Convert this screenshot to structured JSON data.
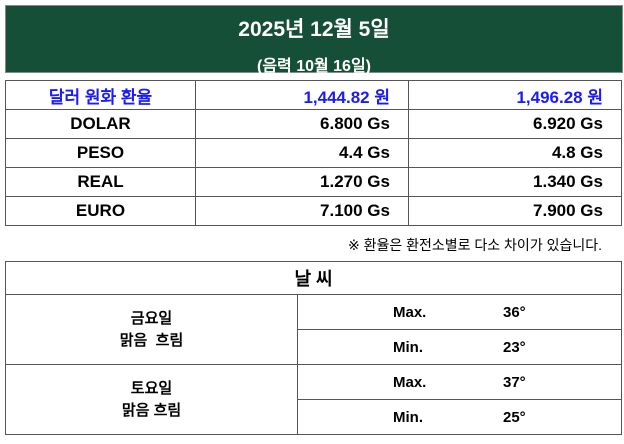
{
  "header": {
    "date": "2025년 12월 5일",
    "lunar": "(음력 10월 16일)",
    "bg_color": "#164f37"
  },
  "exchange": {
    "krw": {
      "label": "달러 원화 환율",
      "buy": "1,444.82 원",
      "sell": "1,496.28 원",
      "color": "#1a1aff"
    },
    "rows": [
      {
        "label": "DOLAR",
        "buy": "6.800 Gs",
        "sell": "6.920 Gs"
      },
      {
        "label": "PESO",
        "buy": "4.4 Gs",
        "sell": "4.8 Gs"
      },
      {
        "label": "REAL",
        "buy": "1.270 Gs",
        "sell": "1.340 Gs"
      },
      {
        "label": "EURO",
        "buy": "7.100 Gs",
        "sell": "7.900 Gs"
      }
    ],
    "note": "※ 환율은 환전소별로 다소 차이가 있습니다."
  },
  "weather": {
    "title": "날   씨",
    "days": [
      {
        "day": "금요일",
        "cond": "맑음  흐림",
        "max_label": "Max.",
        "max": "36°",
        "min_label": "Min.",
        "min": "23°"
      },
      {
        "day": "토요일",
        "cond": "맑음 흐림",
        "max_label": "Max.",
        "max": "37°",
        "min_label": "Min.",
        "min": "25°"
      }
    ]
  }
}
